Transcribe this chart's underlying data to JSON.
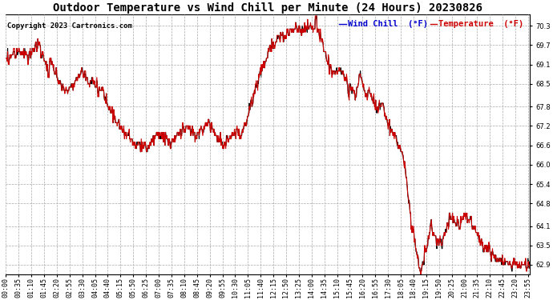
{
  "title": "Outdoor Temperature vs Wind Chill per Minute (24 Hours) 20230826",
  "copyright": "Copyright 2023 Cartronics.com",
  "legend_wind_chill": "Wind Chill  (°F)",
  "legend_temperature": "Temperature  (°F)",
  "wind_chill_color": "#0000cc",
  "temperature_color": "#cc0000",
  "line_color": "#cc0000",
  "background_color": "#ffffff",
  "ylim_min": 62.6,
  "ylim_max": 70.65,
  "yticks": [
    62.9,
    63.5,
    64.1,
    64.8,
    65.4,
    66.0,
    66.6,
    67.2,
    67.8,
    68.5,
    69.1,
    69.7,
    70.3
  ],
  "grid_color": "#aaaaaa",
  "title_color": "#000000",
  "title_fontsize": 10,
  "copyright_color": "#000000",
  "copyright_fontsize": 6.5,
  "legend_fontsize": 7.5,
  "tick_fontsize": 6,
  "figsize": [
    6.9,
    3.75
  ],
  "dpi": 100
}
